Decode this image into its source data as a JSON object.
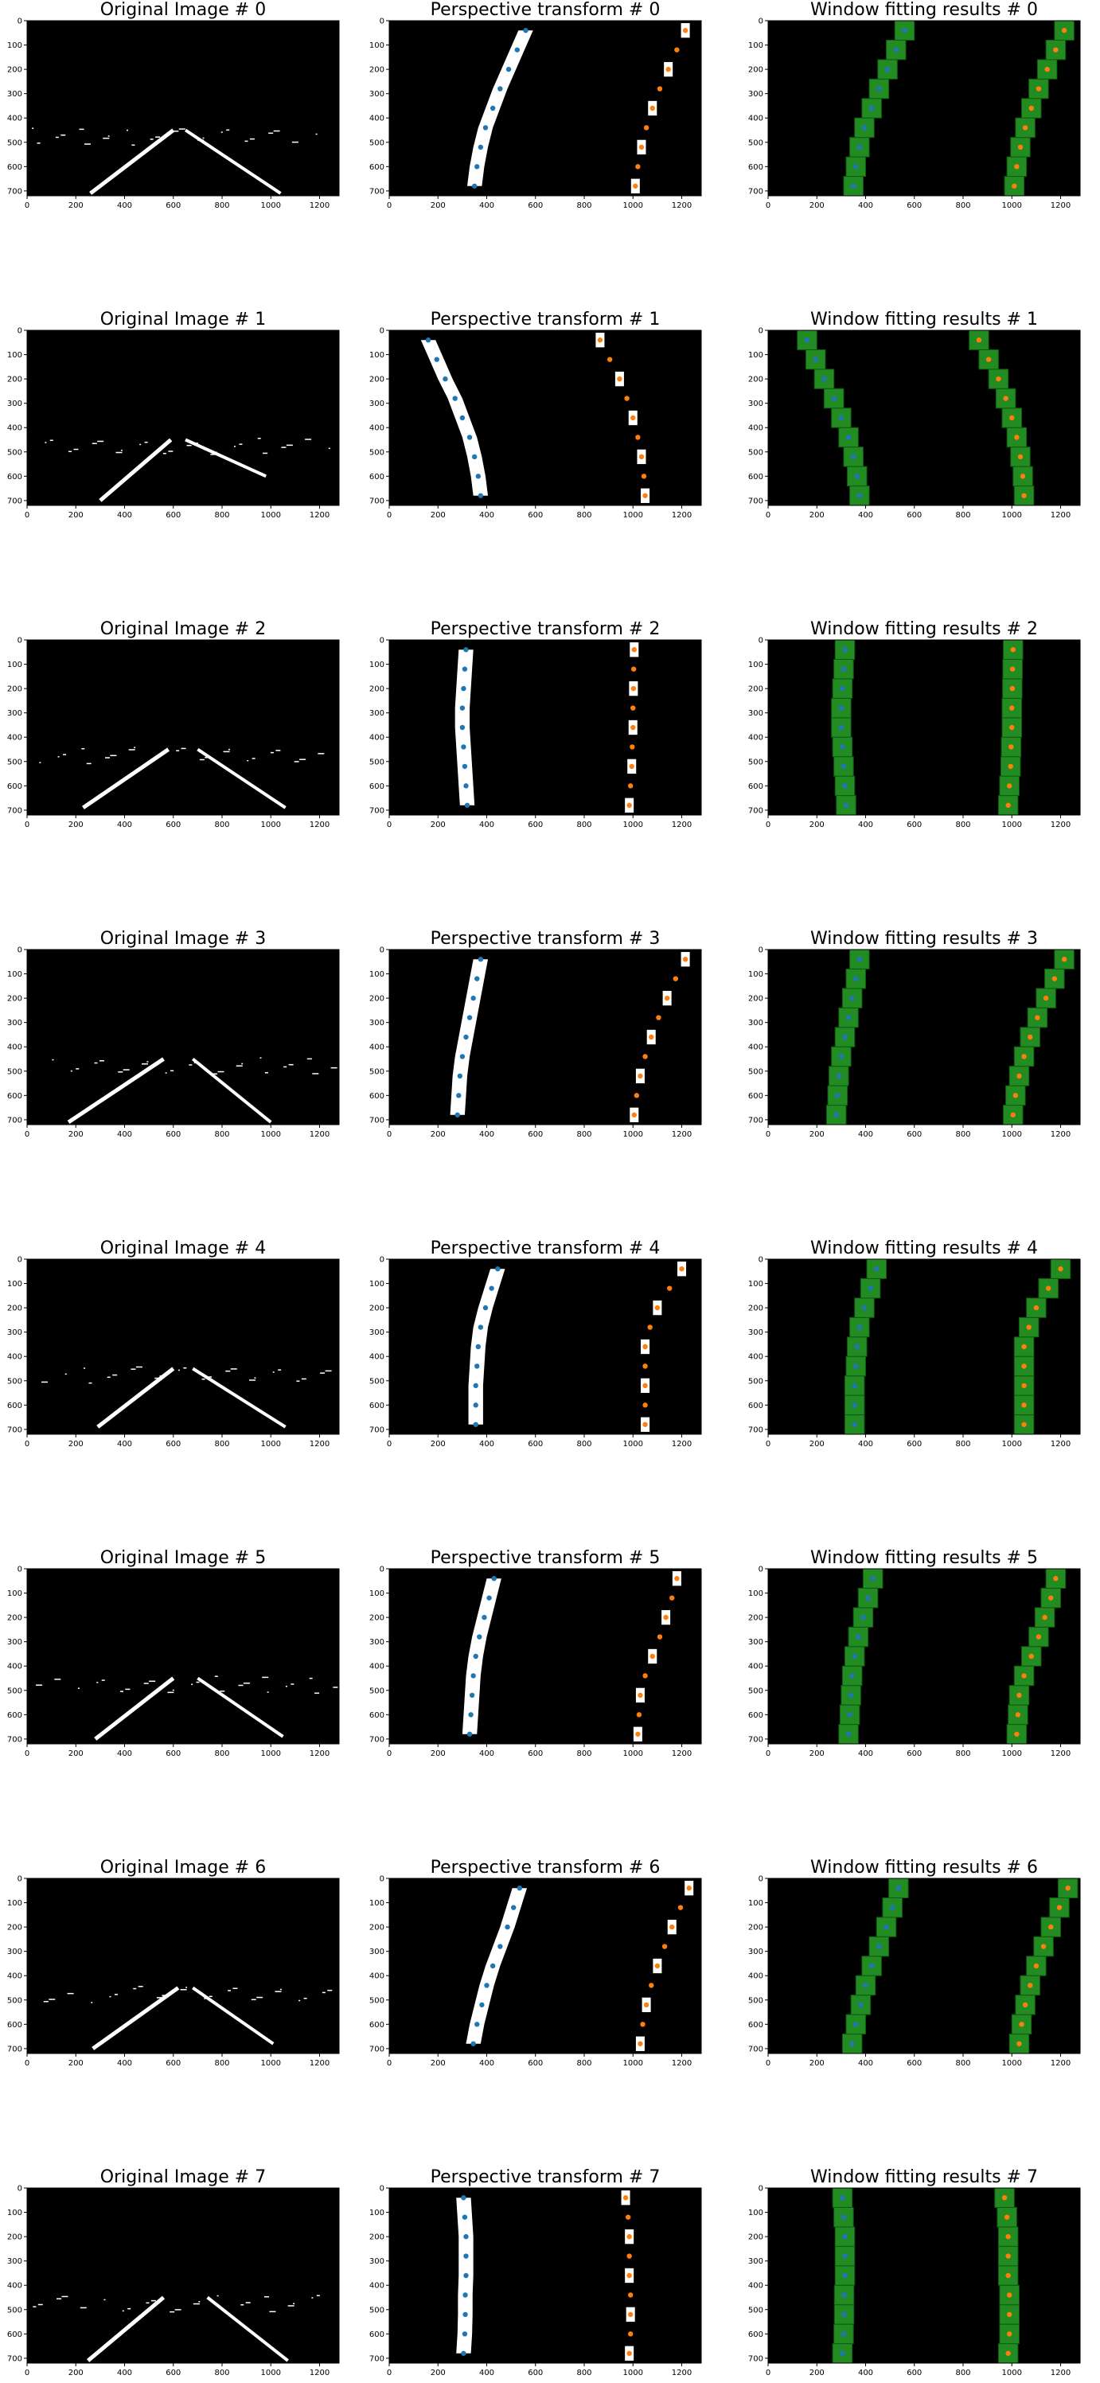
{
  "chart_data": {
    "type": "image-grid",
    "xlim": [
      0,
      1280
    ],
    "ylim": [
      720,
      0
    ],
    "xticks": [
      0,
      200,
      400,
      600,
      800,
      1000,
      1200
    ],
    "yticks": [
      0,
      100,
      200,
      300,
      400,
      500,
      600,
      700
    ],
    "rows": [
      {
        "original_title": "Original Image # 0",
        "perspective_title": "Perspective transform # 0",
        "window_title": "Window fitting results # 0",
        "left_points": [
          [
            350,
            680
          ],
          [
            360,
            600
          ],
          [
            375,
            520
          ],
          [
            395,
            440
          ],
          [
            425,
            360
          ],
          [
            455,
            280
          ],
          [
            490,
            200
          ],
          [
            525,
            120
          ],
          [
            560,
            40
          ]
        ],
        "right_points": [
          [
            1010,
            680
          ],
          [
            1020,
            600
          ],
          [
            1035,
            520
          ],
          [
            1055,
            440
          ],
          [
            1080,
            360
          ],
          [
            1110,
            280
          ],
          [
            1145,
            200
          ],
          [
            1180,
            120
          ],
          [
            1215,
            40
          ]
        ],
        "original_lines": [
          [
            [
              260,
              710
            ],
            [
              600,
              450
            ]
          ],
          [
            [
              650,
              450
            ],
            [
              1040,
              710
            ]
          ]
        ]
      },
      {
        "original_title": "Original Image # 1",
        "perspective_title": "Perspective transform # 1",
        "window_title": "Window fitting results # 1",
        "left_points": [
          [
            375,
            680
          ],
          [
            365,
            600
          ],
          [
            350,
            520
          ],
          [
            330,
            440
          ],
          [
            300,
            360
          ],
          [
            270,
            280
          ],
          [
            230,
            200
          ],
          [
            195,
            120
          ],
          [
            160,
            40
          ]
        ],
        "right_points": [
          [
            1050,
            680
          ],
          [
            1045,
            600
          ],
          [
            1035,
            520
          ],
          [
            1020,
            440
          ],
          [
            1000,
            360
          ],
          [
            975,
            280
          ],
          [
            945,
            200
          ],
          [
            905,
            120
          ],
          [
            865,
            40
          ]
        ],
        "original_lines": [
          [
            [
              300,
              700
            ],
            [
              590,
              450
            ]
          ],
          [
            [
              650,
              450
            ],
            [
              980,
              600
            ]
          ]
        ]
      },
      {
        "original_title": "Original Image # 2",
        "perspective_title": "Perspective transform # 2",
        "window_title": "Window fitting results # 2",
        "left_points": [
          [
            320,
            680
          ],
          [
            315,
            600
          ],
          [
            310,
            520
          ],
          [
            305,
            440
          ],
          [
            300,
            360
          ],
          [
            300,
            280
          ],
          [
            305,
            200
          ],
          [
            310,
            120
          ],
          [
            315,
            40
          ]
        ],
        "right_points": [
          [
            985,
            680
          ],
          [
            990,
            600
          ],
          [
            995,
            520
          ],
          [
            997,
            440
          ],
          [
            1000,
            360
          ],
          [
            1000,
            280
          ],
          [
            1002,
            200
          ],
          [
            1003,
            120
          ],
          [
            1005,
            40
          ]
        ],
        "original_lines": [
          [
            [
              230,
              690
            ],
            [
              580,
              450
            ]
          ],
          [
            [
              700,
              450
            ],
            [
              1060,
              690
            ]
          ]
        ]
      },
      {
        "original_title": "Original Image # 3",
        "perspective_title": "Perspective transform # 3",
        "window_title": "Window fitting results # 3",
        "left_points": [
          [
            280,
            680
          ],
          [
            285,
            600
          ],
          [
            290,
            520
          ],
          [
            300,
            440
          ],
          [
            315,
            360
          ],
          [
            330,
            280
          ],
          [
            345,
            200
          ],
          [
            360,
            120
          ],
          [
            375,
            40
          ]
        ],
        "right_points": [
          [
            1005,
            680
          ],
          [
            1015,
            600
          ],
          [
            1030,
            520
          ],
          [
            1050,
            440
          ],
          [
            1075,
            360
          ],
          [
            1105,
            280
          ],
          [
            1140,
            200
          ],
          [
            1175,
            120
          ],
          [
            1215,
            40
          ]
        ],
        "original_lines": [
          [
            [
              170,
              710
            ],
            [
              560,
              450
            ]
          ],
          [
            [
              680,
              450
            ],
            [
              1000,
              710
            ]
          ]
        ]
      },
      {
        "original_title": "Original Image # 4",
        "perspective_title": "Perspective transform # 4",
        "window_title": "Window fitting results # 4",
        "left_points": [
          [
            355,
            680
          ],
          [
            355,
            600
          ],
          [
            355,
            520
          ],
          [
            360,
            440
          ],
          [
            365,
            360
          ],
          [
            375,
            280
          ],
          [
            395,
            200
          ],
          [
            420,
            120
          ],
          [
            445,
            40
          ]
        ],
        "right_points": [
          [
            1050,
            680
          ],
          [
            1050,
            600
          ],
          [
            1050,
            520
          ],
          [
            1050,
            440
          ],
          [
            1050,
            360
          ],
          [
            1070,
            280
          ],
          [
            1100,
            200
          ],
          [
            1150,
            120
          ],
          [
            1200,
            40
          ]
        ],
        "original_lines": [
          [
            [
              290,
              690
            ],
            [
              600,
              450
            ]
          ],
          [
            [
              680,
              450
            ],
            [
              1060,
              690
            ]
          ]
        ]
      },
      {
        "original_title": "Original Image # 5",
        "perspective_title": "Perspective transform # 5",
        "window_title": "Window fitting results # 5",
        "left_points": [
          [
            330,
            680
          ],
          [
            335,
            600
          ],
          [
            340,
            520
          ],
          [
            345,
            440
          ],
          [
            355,
            360
          ],
          [
            370,
            280
          ],
          [
            390,
            200
          ],
          [
            410,
            120
          ],
          [
            430,
            40
          ]
        ],
        "right_points": [
          [
            1020,
            680
          ],
          [
            1025,
            600
          ],
          [
            1030,
            520
          ],
          [
            1050,
            440
          ],
          [
            1080,
            360
          ],
          [
            1110,
            280
          ],
          [
            1135,
            200
          ],
          [
            1160,
            120
          ],
          [
            1180,
            40
          ]
        ],
        "original_lines": [
          [
            [
              280,
              700
            ],
            [
              600,
              450
            ]
          ],
          [
            [
              700,
              450
            ],
            [
              1050,
              690
            ]
          ]
        ]
      },
      {
        "original_title": "Original Image # 6",
        "perspective_title": "Perspective transform # 6",
        "window_title": "Window fitting results # 6",
        "left_points": [
          [
            345,
            680
          ],
          [
            360,
            600
          ],
          [
            380,
            520
          ],
          [
            400,
            440
          ],
          [
            425,
            360
          ],
          [
            455,
            280
          ],
          [
            485,
            200
          ],
          [
            510,
            120
          ],
          [
            535,
            40
          ]
        ],
        "right_points": [
          [
            1030,
            680
          ],
          [
            1040,
            600
          ],
          [
            1055,
            520
          ],
          [
            1075,
            440
          ],
          [
            1100,
            360
          ],
          [
            1130,
            280
          ],
          [
            1160,
            200
          ],
          [
            1195,
            120
          ],
          [
            1230,
            40
          ]
        ],
        "original_lines": [
          [
            [
              270,
              700
            ],
            [
              620,
              450
            ]
          ],
          [
            [
              680,
              450
            ],
            [
              1010,
              680
            ]
          ]
        ]
      },
      {
        "original_title": "Original Image # 7",
        "perspective_title": "Perspective transform # 7",
        "window_title": "Window fitting results # 7",
        "left_points": [
          [
            305,
            680
          ],
          [
            310,
            600
          ],
          [
            312,
            520
          ],
          [
            312,
            440
          ],
          [
            315,
            360
          ],
          [
            315,
            280
          ],
          [
            315,
            200
          ],
          [
            310,
            120
          ],
          [
            305,
            40
          ]
        ],
        "right_points": [
          [
            985,
            680
          ],
          [
            990,
            600
          ],
          [
            990,
            520
          ],
          [
            990,
            440
          ],
          [
            985,
            360
          ],
          [
            985,
            280
          ],
          [
            985,
            200
          ],
          [
            980,
            120
          ],
          [
            970,
            40
          ]
        ],
        "original_lines": [
          [
            [
              250,
              710
            ],
            [
              560,
              450
            ]
          ],
          [
            [
              740,
              450
            ],
            [
              1070,
              710
            ]
          ]
        ]
      }
    ]
  },
  "colors": {
    "background": "#000000",
    "lane": "#ffffff",
    "left_points": "#1f77b4",
    "right_points": "#ff7f0e",
    "window_fill": "#228b22",
    "window_dark": "#0f5a0f"
  }
}
